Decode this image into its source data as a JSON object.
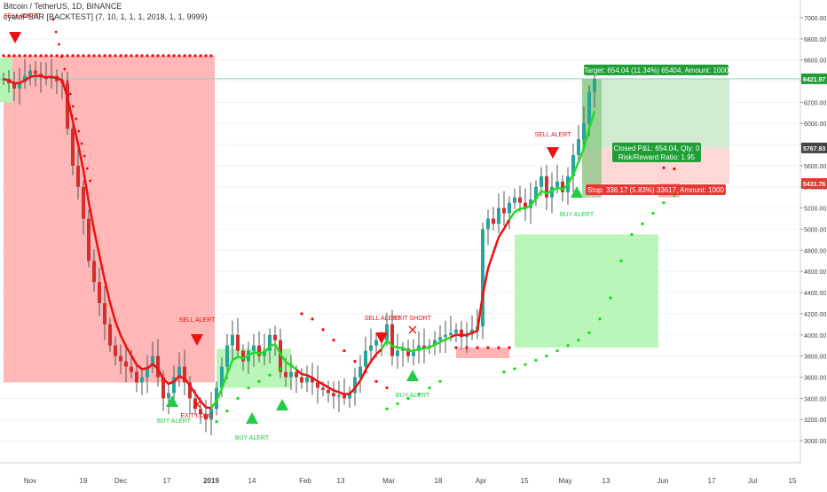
{
  "header": {
    "symbol_line": "Bitcoin / TetherUS, 1D, BINANCE",
    "indicator_line": "cyatoPSAR [BACKTEST] (7, 10, 1, 1, 1, 2018, 1, 1, 9999)"
  },
  "colors": {
    "bull": "#26a69a",
    "bear": "#ef5350",
    "candle_up": "#26a69a",
    "candle_down": "#d32f2f",
    "psar_bear": "#ff0000",
    "psar_bull": "#00e600",
    "zone_short": "#ffb3b3",
    "zone_long": "#b3f5b3",
    "ema_bear": "#ee1111",
    "ema_bull": "#22dd22",
    "target_box": "#c8e8c8",
    "stop_box": "#ffd6d6",
    "hline": "#8fd1bf",
    "axis_text": "#444444",
    "grid": "#f0f3fa"
  },
  "chart_data": {
    "type": "candlestick",
    "title": "Bitcoin / TetherUS, 1D, BINANCE",
    "ylim": [
      2900,
      7100
    ],
    "y_ticks": [
      "3000.00",
      "3200.00",
      "3400.00",
      "3600.00",
      "3800.00",
      "4000.00",
      "4200.00",
      "4400.00",
      "4600.00",
      "4800.00",
      "5000.00",
      "5200.00",
      "5400.00",
      "5600.00",
      "5800.00",
      "6000.00",
      "6200.00",
      "6400.00",
      "6600.00",
      "6800.00",
      "7000.00"
    ],
    "x_ticks": [
      "Nov",
      "19",
      "Dec",
      "17",
      "2019",
      "14",
      "Feb",
      "13",
      "Mar",
      "18",
      "Apr",
      "15",
      "May",
      "13",
      "Jun",
      "17",
      "Jul",
      "15"
    ],
    "close_series": [
      6420,
      6380,
      6330,
      6390,
      6450,
      6500,
      6470,
      6440,
      6420,
      6450,
      6400,
      6380,
      5950,
      5600,
      5400,
      5100,
      4700,
      4500,
      4300,
      4100,
      3900,
      3800,
      3750,
      3700,
      3650,
      3550,
      3600,
      3700,
      3800,
      3600,
      3400,
      3450,
      3600,
      3700,
      3550,
      3400,
      3300,
      3250,
      3200,
      3300,
      3500,
      3700,
      3900,
      4000,
      3850,
      3750,
      3850,
      3900,
      3800,
      3850,
      4000,
      3950,
      3650,
      3600,
      3650,
      3600,
      3550,
      3600,
      3550,
      3500,
      3480,
      3450,
      3420,
      3430,
      3400,
      3450,
      3600,
      3700,
      3850,
      3900,
      3950,
      3950,
      4100,
      3800,
      3850,
      3870,
      3800,
      3850,
      3900,
      3880,
      3900,
      3950,
      3980,
      4000,
      4020,
      4050,
      3980,
      4010,
      4050,
      4080,
      5000,
      5100,
      5050,
      5200,
      5150,
      5250,
      5300,
      5250,
      5200,
      5280,
      5400,
      5500,
      5300,
      5400,
      5450,
      5350,
      5500,
      5700,
      5850,
      6000,
      6300,
      6420
    ],
    "psar_bear_dots": [
      [
        0,
        6640
      ],
      [
        1,
        6640
      ],
      [
        2,
        6640
      ],
      [
        3,
        6640
      ],
      [
        4,
        6640
      ],
      [
        5,
        6640
      ],
      [
        6,
        6640
      ],
      [
        7,
        6640
      ],
      [
        8,
        6640
      ],
      [
        9,
        6640
      ],
      [
        10,
        6640
      ],
      [
        11,
        6640
      ],
      [
        12,
        6640
      ],
      [
        13,
        6640
      ],
      [
        14,
        6640
      ],
      [
        15,
        6640
      ],
      [
        16,
        6640
      ],
      [
        17,
        6640
      ],
      [
        18,
        6640
      ],
      [
        19,
        6640
      ],
      [
        20,
        6640
      ],
      [
        21,
        6640
      ],
      [
        22,
        6640
      ],
      [
        23,
        6640
      ],
      [
        24,
        6640
      ],
      [
        25,
        6640
      ],
      [
        26,
        6640
      ],
      [
        27,
        6640
      ],
      [
        28,
        6640
      ],
      [
        29,
        6640
      ],
      [
        30,
        6640
      ],
      [
        31,
        6640
      ],
      [
        32,
        6640
      ],
      [
        33,
        6640
      ],
      [
        34,
        6640
      ],
      [
        35,
        6640
      ],
      [
        36,
        6640
      ],
      [
        37,
        6640
      ],
      [
        38,
        6640
      ],
      [
        39,
        6640
      ],
      [
        56,
        4200
      ],
      [
        58,
        4150
      ],
      [
        60,
        4050
      ],
      [
        62,
        3950
      ],
      [
        64,
        3850
      ],
      [
        66,
        3750
      ],
      [
        68,
        3650
      ],
      [
        70,
        3560
      ],
      [
        72,
        3500
      ],
      [
        85,
        3880
      ],
      [
        87,
        3880
      ],
      [
        89,
        3880
      ],
      [
        91,
        3880
      ],
      [
        93,
        3880
      ],
      [
        95,
        3880
      ],
      [
        124,
        5580
      ],
      [
        126,
        5570
      ]
    ],
    "psar_bull_dots": [
      [
        40,
        3180
      ],
      [
        42,
        3280
      ],
      [
        44,
        3400
      ],
      [
        46,
        3500
      ],
      [
        48,
        3560
      ],
      [
        50,
        3620
      ],
      [
        52,
        3680
      ],
      [
        54,
        3720
      ],
      [
        72,
        3300
      ],
      [
        74,
        3350
      ],
      [
        76,
        3400
      ],
      [
        78,
        3440
      ],
      [
        80,
        3500
      ],
      [
        82,
        3560
      ],
      [
        94,
        3650
      ],
      [
        96,
        3680
      ],
      [
        98,
        3720
      ],
      [
        100,
        3760
      ],
      [
        102,
        3800
      ],
      [
        104,
        3850
      ],
      [
        106,
        3900
      ],
      [
        108,
        3950
      ],
      [
        110,
        4020
      ],
      [
        112,
        4150
      ],
      [
        114,
        4350
      ],
      [
        116,
        4700
      ],
      [
        118,
        4950
      ],
      [
        120,
        5050
      ],
      [
        122,
        5150
      ],
      [
        124,
        5250
      ],
      [
        126,
        5320
      ],
      [
        128,
        5400
      ]
    ],
    "long_zone": {
      "level": 3880,
      "label": "long"
    },
    "short_zone": {
      "level": 6640,
      "label": "short"
    },
    "position": {
      "entry": 5767.93,
      "target": 6421.97,
      "stop": 5431.76,
      "target_label": "Target: 654.04 (11.34%) 65404, Amount: 1000",
      "stop_label": "Stop: 336.17 (5.83%) 33617, Amount: 1000",
      "pnl_label_1": "Closed P&L: 654.04, Qty: 0",
      "pnl_label_2": "Risk/Reward Ratio: 1.95"
    },
    "price_tags": [
      {
        "value": "6421.97",
        "price": 6421.97,
        "style": "green"
      },
      {
        "value": "5767.93",
        "price": 5767.93,
        "style": "dark"
      },
      {
        "value": "5431.76",
        "price": 5431.76,
        "style": "red"
      }
    ],
    "annotations": [
      {
        "text": "SELL ALERT",
        "kind": "sell"
      },
      {
        "text": "SELL ALERT",
        "kind": "sell"
      },
      {
        "text": "SELL ALERT",
        "kind": "sell"
      },
      {
        "text": "EXIT SHORT",
        "kind": "exit"
      },
      {
        "text": "SELL ALERT",
        "kind": "sell"
      },
      {
        "text": "BUY ALERT",
        "kind": "buy"
      },
      {
        "text": "EXIT LONG",
        "kind": "exit"
      },
      {
        "text": "BUY ALERT",
        "kind": "buy"
      },
      {
        "text": "BUY ALERT",
        "kind": "buy"
      },
      {
        "text": "BUY ALERT",
        "kind": "buy"
      }
    ]
  }
}
